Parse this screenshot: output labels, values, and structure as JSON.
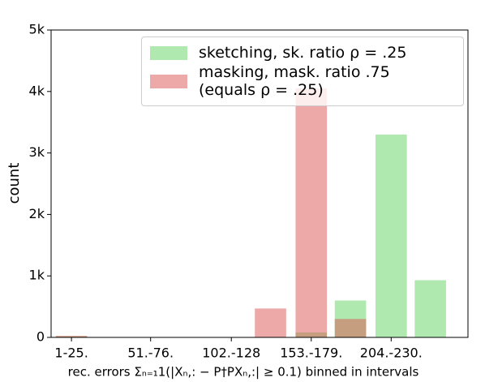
{
  "chart_data": {
    "type": "bar",
    "x": [
      13,
      140,
      166,
      191,
      217,
      242
    ],
    "bar_width": 20,
    "series": [
      {
        "name": "sketching, sk. ratio ρ = .25",
        "color": "#5fd35f",
        "values": [
          20,
          null,
          80,
          600,
          3300,
          930
        ]
      },
      {
        "name": "masking, mask. ratio .75\n(equals ρ = .25)",
        "color": "#d9534f",
        "values": [
          25,
          470,
          4050,
          300,
          null,
          null
        ]
      }
    ],
    "xlim": [
      0,
      266
    ],
    "xticks": [
      {
        "value": 13,
        "label": "1-25."
      },
      {
        "value": 63.5,
        "label": "51.-76."
      },
      {
        "value": 115,
        "label": "102.-128"
      },
      {
        "value": 166,
        "label": "153.-179."
      },
      {
        "value": 217,
        "label": "204.-230."
      }
    ],
    "ylim": [
      0,
      5000
    ],
    "yticks": [
      0,
      {
        "value": 1000,
        "label": "1k"
      },
      {
        "value": 2000,
        "label": "2k"
      },
      {
        "value": 3000,
        "label": "3k"
      },
      {
        "value": 4000,
        "label": "4k"
      },
      {
        "value": 5000,
        "label": "5k"
      }
    ],
    "xlabel": "rec. errors Σₙ₌₁1(|Xₙ,: − P†PXₙ,:| ≥ 0.1)  binned in intervals",
    "ylabel": "count",
    "legend": "upper right"
  }
}
